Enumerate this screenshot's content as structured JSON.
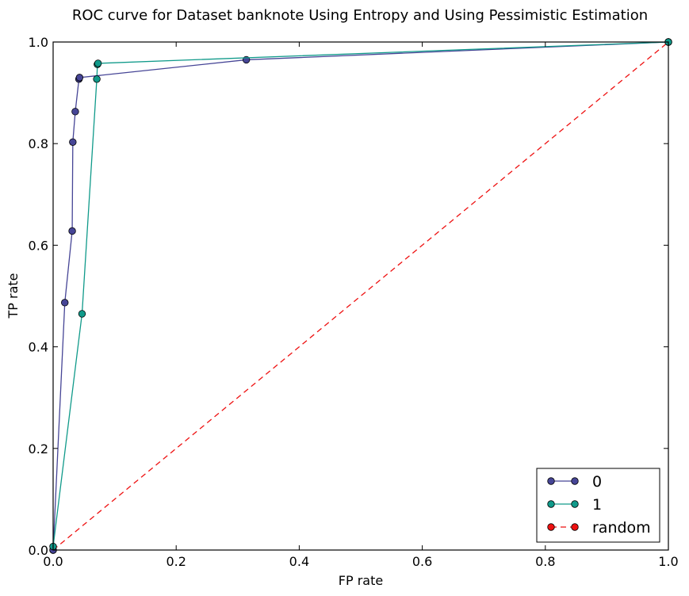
{
  "chart_data": {
    "type": "line",
    "title": "ROC curve for Dataset banknote Using Entropy and Using Pessimistic Estimation",
    "xlabel": "FP rate",
    "ylabel": "TP rate",
    "xlim": [
      0.0,
      1.0
    ],
    "ylim": [
      0.0,
      1.0
    ],
    "xticks": [
      "0.0",
      "0.2",
      "0.4",
      "0.6",
      "0.8",
      "1.0"
    ],
    "yticks": [
      "0.0",
      "0.2",
      "0.4",
      "0.6",
      "0.8",
      "1.0"
    ],
    "grid": false,
    "legend_position": "bottom-right",
    "series": [
      {
        "name": "0",
        "color": "#464596",
        "line_style": "solid",
        "marker": "circle",
        "x": [
          0.0,
          0.019,
          0.031,
          0.032,
          0.036,
          0.042,
          0.043,
          0.314,
          1.0
        ],
        "y": [
          0.0,
          0.487,
          0.628,
          0.803,
          0.863,
          0.927,
          0.93,
          0.965,
          1.0
        ]
      },
      {
        "name": "1",
        "color": "#109a8a",
        "line_style": "solid",
        "marker": "circle",
        "x": [
          0.0,
          0.047,
          0.071,
          0.072,
          0.073,
          1.0
        ],
        "y": [
          0.007,
          0.465,
          0.927,
          0.956,
          0.958,
          1.0
        ]
      },
      {
        "name": "random",
        "color": "#ee1111",
        "line_style": "dashed",
        "marker": "circle",
        "x": [
          0.0,
          1.0
        ],
        "y": [
          0.0,
          1.0
        ]
      }
    ]
  }
}
